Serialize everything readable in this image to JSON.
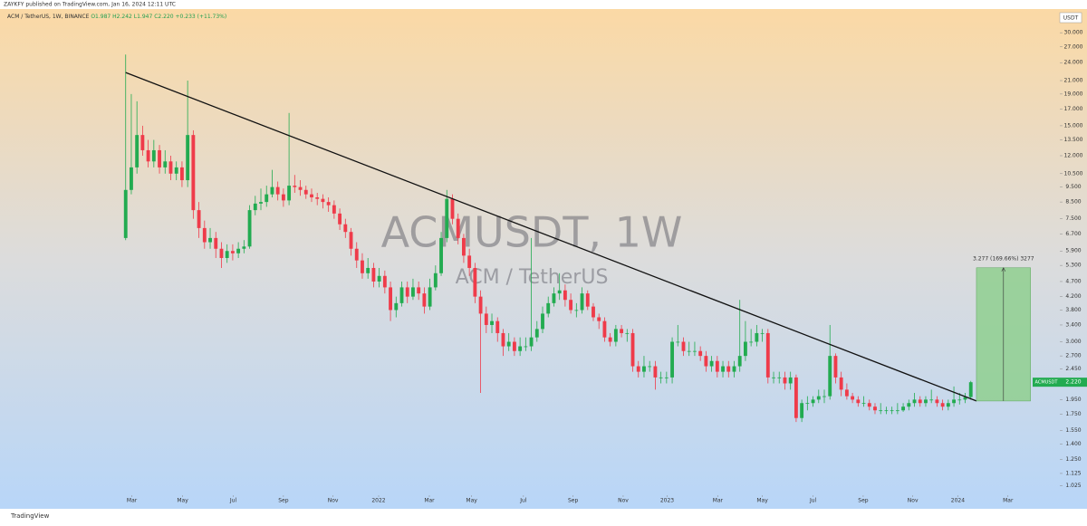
{
  "header": {
    "published": "ZAYKFY published on TradingView.com, Jan 16, 2024 12:11 UTC"
  },
  "legend": {
    "symbol": "ACM / TetherUS, 1W, BINANCE",
    "open": "O1.987",
    "high": "H2.242",
    "low": "L1.947",
    "close": "C2.220",
    "change": "+0.233 (+11.73%)"
  },
  "watermark": {
    "title": "ACMUSDT, 1W",
    "subtitle": "ACM / TetherUS"
  },
  "currency": "USDT",
  "footer": "TradingView",
  "chart_data": {
    "type": "candlestick",
    "log_scale": true,
    "up_color": "#22ab50",
    "down_color": "#ef3b4a",
    "ohlc": [
      [
        6.5,
        25.5,
        6.4,
        9.3
      ],
      [
        9.3,
        19,
        9,
        11
      ],
      [
        11,
        18,
        10.5,
        14
      ],
      [
        14,
        15,
        12,
        12.5
      ],
      [
        12.5,
        13.5,
        11,
        11.5
      ],
      [
        11.5,
        13.5,
        11,
        12.5
      ],
      [
        12.5,
        13,
        10.5,
        11
      ],
      [
        11,
        12.5,
        10.5,
        11.5
      ],
      [
        11.5,
        12,
        10,
        10.5
      ],
      [
        10.5,
        11.5,
        10,
        11
      ],
      [
        11,
        11.5,
        9.5,
        10
      ],
      [
        10,
        21,
        9.5,
        14
      ],
      [
        14,
        14.5,
        7.5,
        8
      ],
      [
        8,
        8.5,
        6.5,
        7
      ],
      [
        7,
        7.4,
        6,
        6.3
      ],
      [
        6.3,
        7,
        6,
        6.5
      ],
      [
        6.5,
        6.8,
        5.6,
        6
      ],
      [
        6,
        6.3,
        5.2,
        5.6
      ],
      [
        5.6,
        6.2,
        5.4,
        5.9
      ],
      [
        5.9,
        6.2,
        5.5,
        5.8
      ],
      [
        5.8,
        6.3,
        5.6,
        6
      ],
      [
        6,
        6.4,
        5.8,
        6.1
      ],
      [
        6.1,
        8.3,
        6,
        8
      ],
      [
        8,
        8.9,
        7.7,
        8.4
      ],
      [
        8.4,
        9.4,
        8,
        8.5
      ],
      [
        8.5,
        9.6,
        8.2,
        9
      ],
      [
        9,
        10.8,
        8.8,
        9.5
      ],
      [
        9.5,
        9.9,
        8.6,
        9
      ],
      [
        9,
        9.4,
        8.2,
        8.6
      ],
      [
        8.6,
        16.5,
        8.3,
        9.6
      ],
      [
        9.6,
        10.4,
        9.1,
        9.5
      ],
      [
        9.5,
        10,
        8.9,
        9.3
      ],
      [
        9.3,
        9.6,
        8.7,
        9
      ],
      [
        9,
        9.4,
        8.5,
        8.8
      ],
      [
        8.8,
        9.1,
        8.3,
        8.7
      ],
      [
        8.7,
        9,
        8.1,
        8.5
      ],
      [
        8.5,
        8.8,
        7.9,
        8.3
      ],
      [
        8.3,
        8.6,
        7.5,
        7.8
      ],
      [
        7.8,
        8.1,
        6.9,
        7.2
      ],
      [
        7.2,
        7.5,
        6.5,
        6.8
      ],
      [
        6.8,
        7,
        5.7,
        6
      ],
      [
        6,
        6.3,
        5.2,
        5.5
      ],
      [
        5.5,
        5.8,
        4.8,
        5
      ],
      [
        5,
        5.6,
        4.8,
        5.2
      ],
      [
        5.2,
        5.4,
        4.5,
        4.7
      ],
      [
        4.7,
        5.2,
        4.5,
        4.9
      ],
      [
        4.9,
        5.1,
        4.3,
        4.5
      ],
      [
        4.5,
        4.7,
        3.5,
        3.8
      ],
      [
        3.8,
        4.2,
        3.6,
        4
      ],
      [
        4,
        4.7,
        3.9,
        4.5
      ],
      [
        4.5,
        4.7,
        4,
        4.2
      ],
      [
        4.2,
        4.8,
        4.1,
        4.5
      ],
      [
        4.5,
        4.7,
        4.1,
        4.3
      ],
      [
        4.3,
        4.5,
        3.7,
        3.9
      ],
      [
        3.9,
        4.8,
        3.8,
        4.5
      ],
      [
        4.5,
        5.3,
        4.4,
        5
      ],
      [
        5,
        6.8,
        4.9,
        6.5
      ],
      [
        6.5,
        9.3,
        6.3,
        8.7
      ],
      [
        8.7,
        9,
        7.2,
        7.5
      ],
      [
        7.5,
        7.8,
        6.2,
        6.5
      ],
      [
        6.5,
        6.7,
        5.4,
        5.7
      ],
      [
        5.7,
        6,
        4.9,
        5.2
      ],
      [
        5.2,
        5.4,
        4,
        4.2
      ],
      [
        4.2,
        4.4,
        2.05,
        3.7
      ],
      [
        3.7,
        3.9,
        3.2,
        3.4
      ],
      [
        3.4,
        3.7,
        3.2,
        3.5
      ],
      [
        3.5,
        3.6,
        3,
        3.2
      ],
      [
        3.2,
        3.3,
        2.7,
        2.9
      ],
      [
        2.9,
        3.2,
        2.8,
        3
      ],
      [
        3,
        3.1,
        2.7,
        2.8
      ],
      [
        2.8,
        3.1,
        2.7,
        2.9
      ],
      [
        2.9,
        3.1,
        2.8,
        2.9
      ],
      [
        2.9,
        6.5,
        2.8,
        3.1
      ],
      [
        3.1,
        3.5,
        3,
        3.3
      ],
      [
        3.3,
        3.9,
        3.2,
        3.7
      ],
      [
        3.7,
        4.2,
        3.6,
        4
      ],
      [
        4,
        4.5,
        3.9,
        4.3
      ],
      [
        4.3,
        5,
        4.1,
        4.4
      ],
      [
        4.4,
        4.6,
        3.9,
        4.1
      ],
      [
        4.1,
        4.3,
        3.7,
        3.8
      ],
      [
        3.8,
        4,
        3.6,
        3.8
      ],
      [
        3.8,
        4.5,
        3.7,
        4.3
      ],
      [
        4.3,
        4.4,
        3.8,
        3.9
      ],
      [
        3.9,
        4,
        3.5,
        3.6
      ],
      [
        3.6,
        3.7,
        3.3,
        3.5
      ],
      [
        3.5,
        3.6,
        3,
        3.1
      ],
      [
        3.1,
        3.2,
        2.9,
        3
      ],
      [
        3,
        3.4,
        2.9,
        3.3
      ],
      [
        3.3,
        3.4,
        3.1,
        3.2
      ],
      [
        3.2,
        3.3,
        3,
        3.2
      ],
      [
        3.2,
        3.3,
        2.4,
        2.5
      ],
      [
        2.5,
        2.6,
        2.3,
        2.4
      ],
      [
        2.4,
        2.7,
        2.3,
        2.5
      ],
      [
        2.5,
        2.6,
        2.4,
        2.5
      ],
      [
        2.5,
        2.6,
        2.1,
        2.3
      ],
      [
        2.3,
        2.4,
        2.2,
        2.3
      ],
      [
        2.3,
        2.4,
        2.2,
        2.3
      ],
      [
        2.3,
        3.1,
        2.2,
        3
      ],
      [
        3,
        3.4,
        2.9,
        3
      ],
      [
        3,
        3.1,
        2.7,
        2.8
      ],
      [
        2.8,
        3,
        2.7,
        2.8
      ],
      [
        2.8,
        3,
        2.7,
        2.8
      ],
      [
        2.8,
        2.9,
        2.6,
        2.7
      ],
      [
        2.7,
        2.8,
        2.4,
        2.5
      ],
      [
        2.5,
        2.7,
        2.4,
        2.6
      ],
      [
        2.6,
        2.7,
        2.3,
        2.4
      ],
      [
        2.4,
        2.6,
        2.3,
        2.5
      ],
      [
        2.5,
        2.6,
        2.3,
        2.4
      ],
      [
        2.4,
        2.6,
        2.3,
        2.5
      ],
      [
        2.5,
        4.1,
        2.4,
        2.7
      ],
      [
        2.7,
        3.5,
        2.6,
        3
      ],
      [
        3,
        3.3,
        2.9,
        3
      ],
      [
        3,
        3.4,
        2.9,
        3.2
      ],
      [
        3.2,
        3.3,
        3,
        3.2
      ],
      [
        3.2,
        3.3,
        2.2,
        2.3
      ],
      [
        2.3,
        2.4,
        2.2,
        2.3
      ],
      [
        2.3,
        2.4,
        2.2,
        2.3
      ],
      [
        2.3,
        2.4,
        2.1,
        2.2
      ],
      [
        2.2,
        2.4,
        2.1,
        2.3
      ],
      [
        2.3,
        2.35,
        1.65,
        1.7
      ],
      [
        1.7,
        1.95,
        1.65,
        1.9
      ],
      [
        1.9,
        2,
        1.8,
        1.9
      ],
      [
        1.9,
        2,
        1.85,
        1.95
      ],
      [
        1.95,
        2.1,
        1.9,
        2
      ],
      [
        2,
        2.1,
        1.9,
        2
      ],
      [
        2,
        3.4,
        1.95,
        2.7
      ],
      [
        2.7,
        2.75,
        2.2,
        2.3
      ],
      [
        2.3,
        2.4,
        2,
        2.1
      ],
      [
        2.1,
        2.2,
        1.95,
        2
      ],
      [
        2,
        2.05,
        1.9,
        1.95
      ],
      [
        1.95,
        2,
        1.85,
        1.9
      ],
      [
        1.9,
        2,
        1.85,
        1.9
      ],
      [
        1.9,
        1.95,
        1.8,
        1.85
      ],
      [
        1.85,
        1.9,
        1.75,
        1.8
      ],
      [
        1.8,
        1.9,
        1.75,
        1.8
      ],
      [
        1.8,
        1.85,
        1.75,
        1.8
      ],
      [
        1.8,
        1.85,
        1.75,
        1.8
      ],
      [
        1.8,
        1.9,
        1.75,
        1.8
      ],
      [
        1.8,
        1.9,
        1.78,
        1.85
      ],
      [
        1.85,
        1.95,
        1.8,
        1.9
      ],
      [
        1.9,
        2.05,
        1.85,
        1.95
      ],
      [
        1.95,
        2,
        1.85,
        1.9
      ],
      [
        1.9,
        2,
        1.85,
        1.95
      ],
      [
        1.95,
        2.1,
        1.9,
        1.95
      ],
      [
        1.95,
        2,
        1.85,
        1.9
      ],
      [
        1.9,
        1.95,
        1.8,
        1.85
      ],
      [
        1.85,
        1.95,
        1.8,
        1.9
      ],
      [
        1.9,
        2.15,
        1.85,
        1.95
      ],
      [
        1.95,
        2.05,
        1.88,
        1.95
      ],
      [
        1.95,
        2.05,
        1.9,
        1.987
      ],
      [
        1.987,
        2.242,
        1.947,
        2.22
      ]
    ],
    "xlim": [
      -21.5,
      165.8
    ],
    "xticks": [
      {
        "value": 1.1,
        "label": "Mar"
      },
      {
        "value": 10.1,
        "label": "May"
      },
      {
        "value": 19.1,
        "label": "Jul"
      },
      {
        "value": 28,
        "label": "Sep"
      },
      {
        "value": 36.8,
        "label": "Nov"
      },
      {
        "value": 44.9,
        "label": "2022"
      },
      {
        "value": 53.9,
        "label": "Mar"
      },
      {
        "value": 61.4,
        "label": "May"
      },
      {
        "value": 70.6,
        "label": "Jul"
      },
      {
        "value": 79.4,
        "label": "Sep"
      },
      {
        "value": 88.3,
        "label": "Nov"
      },
      {
        "value": 96.1,
        "label": "2023"
      },
      {
        "value": 105.1,
        "label": "Mar"
      },
      {
        "value": 113,
        "label": "May"
      },
      {
        "value": 122,
        "label": "Jul"
      },
      {
        "value": 130.9,
        "label": "Sep"
      },
      {
        "value": 139.7,
        "label": "Nov"
      },
      {
        "value": 147.7,
        "label": "2024"
      },
      {
        "value": 156.6,
        "label": "Mar"
      }
    ],
    "ylim": [
      0.95,
      34.6
    ],
    "yticks": [
      {
        "value": 30,
        "label": "30.000"
      },
      {
        "value": 27,
        "label": "27.000"
      },
      {
        "value": 24,
        "label": "24.000"
      },
      {
        "value": 21,
        "label": "21.000"
      },
      {
        "value": 19,
        "label": "19.000"
      },
      {
        "value": 17,
        "label": "17.000"
      },
      {
        "value": 15,
        "label": "15.000"
      },
      {
        "value": 13.5,
        "label": "13.500"
      },
      {
        "value": 12,
        "label": "12.000"
      },
      {
        "value": 10.5,
        "label": "10.500"
      },
      {
        "value": 9.5,
        "label": "9.500"
      },
      {
        "value": 8.5,
        "label": "8.500"
      },
      {
        "value": 7.5,
        "label": "7.500"
      },
      {
        "value": 6.7,
        "label": "6.700"
      },
      {
        "value": 5.9,
        "label": "5.900"
      },
      {
        "value": 5.3,
        "label": "5.300"
      },
      {
        "value": 4.7,
        "label": "4.700"
      },
      {
        "value": 4.2,
        "label": "4.200"
      },
      {
        "value": 3.8,
        "label": "3.800"
      },
      {
        "value": 3.4,
        "label": "3.400"
      },
      {
        "value": 3,
        "label": "3.000"
      },
      {
        "value": 2.7,
        "label": "2.700"
      },
      {
        "value": 2.45,
        "label": "2.450"
      },
      {
        "value": 1.95,
        "label": "1.950"
      },
      {
        "value": 1.75,
        "label": "1.750"
      },
      {
        "value": 1.55,
        "label": "1.550"
      },
      {
        "value": 1.4,
        "label": "1.400"
      },
      {
        "value": 1.25,
        "label": "1.250"
      },
      {
        "value": 1.125,
        "label": "1.125"
      },
      {
        "value": 1.025,
        "label": "1.025"
      }
    ],
    "last_price": {
      "name": "ACMUSDT",
      "value": 2.22,
      "label": "2.220"
    },
    "trendline": {
      "x": [
        0,
        151
      ],
      "y": [
        22.3,
        1.93
      ],
      "color": "#111111"
    },
    "measure": {
      "label": "3.277 (169.66%) 3277",
      "x": [
        151,
        160.6
      ],
      "y": [
        1.93,
        5.207
      ],
      "color": "#8fcf8f"
    }
  }
}
